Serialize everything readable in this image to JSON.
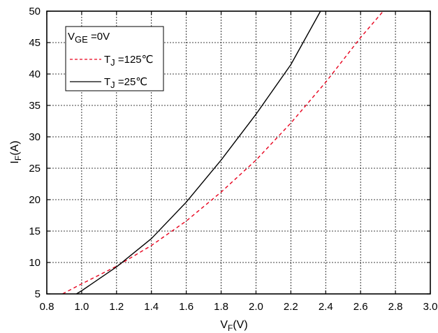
{
  "chart_data": {
    "type": "line",
    "xlabel": {
      "main": "V",
      "sub": "F",
      "unit": "(V)"
    },
    "ylabel": {
      "main": "I",
      "sub": "F",
      "unit": "(A)"
    },
    "xlim": [
      0.8,
      3.0
    ],
    "ylim": [
      5,
      50
    ],
    "xticks": [
      "0.8",
      "1.0",
      "1.2",
      "1.4",
      "1.6",
      "1.8",
      "2.0",
      "2.2",
      "2.4",
      "2.6",
      "2.8",
      "3.0"
    ],
    "yticks": [
      "5",
      "10",
      "15",
      "20",
      "25",
      "30",
      "35",
      "40",
      "45",
      "50"
    ],
    "grid": true,
    "legend": {
      "placement": "top-left",
      "header": {
        "main": "V",
        "sub": "GE",
        "suffix": " =0V"
      }
    },
    "series": [
      {
        "name": {
          "main": "T",
          "sub": "J",
          "suffix": " =125℃"
        },
        "style": "dashed",
        "color": "#e8001c",
        "x": [
          0.89,
          1.0,
          1.2,
          1.4,
          1.6,
          1.8,
          2.0,
          2.2,
          2.4,
          2.6,
          2.73
        ],
        "y": [
          5.0,
          6.6,
          9.4,
          12.7,
          16.6,
          21.2,
          26.3,
          32.2,
          38.7,
          45.8,
          50.0
        ]
      },
      {
        "name": {
          "main": "T",
          "sub": "J",
          "suffix": " =25℃"
        },
        "style": "solid",
        "color": "#000000",
        "x": [
          0.97,
          1.0,
          1.2,
          1.4,
          1.6,
          1.8,
          2.0,
          2.2,
          2.37
        ],
        "y": [
          5.0,
          5.5,
          9.3,
          13.8,
          19.6,
          26.3,
          33.6,
          41.5,
          50.0
        ]
      }
    ]
  }
}
